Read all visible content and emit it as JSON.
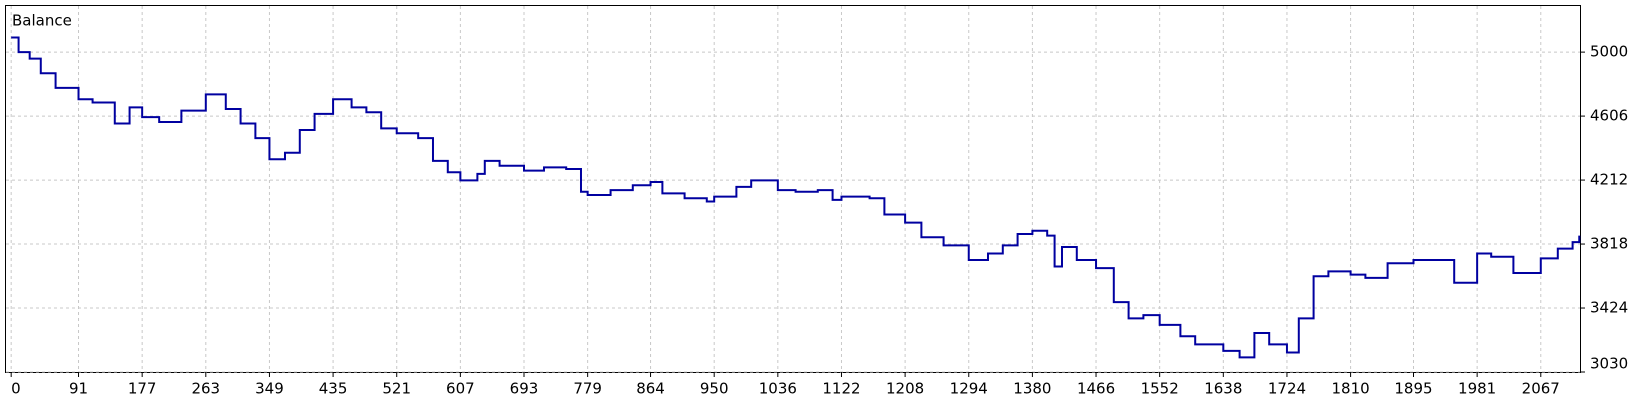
{
  "chart_data": {
    "type": "line",
    "title": "Balance",
    "x": [
      0,
      10,
      25,
      40,
      60,
      91,
      110,
      140,
      160,
      177,
      200,
      230,
      263,
      290,
      310,
      330,
      349,
      370,
      390,
      410,
      435,
      460,
      480,
      500,
      521,
      550,
      570,
      590,
      607,
      630,
      640,
      660,
      693,
      720,
      750,
      770,
      779,
      810,
      840,
      864,
      880,
      910,
      940,
      950,
      980,
      1000,
      1036,
      1060,
      1090,
      1110,
      1122,
      1160,
      1180,
      1208,
      1230,
      1260,
      1294,
      1320,
      1340,
      1360,
      1380,
      1400,
      1410,
      1420,
      1440,
      1466,
      1490,
      1510,
      1530,
      1552,
      1580,
      1600,
      1638,
      1660,
      1680,
      1700,
      1724,
      1740,
      1760,
      1780,
      1810,
      1830,
      1860,
      1895,
      1920,
      1950,
      1981,
      2000,
      2030,
      2067,
      2090,
      2110,
      2119
    ],
    "series": [
      {
        "name": "Balance",
        "color": "#0000a0",
        "values": [
          5090,
          5000,
          4960,
          4870,
          4780,
          4710,
          4690,
          4560,
          4660,
          4600,
          4570,
          4640,
          4740,
          4650,
          4560,
          4470,
          4340,
          4380,
          4520,
          4620,
          4710,
          4660,
          4630,
          4530,
          4500,
          4470,
          4330,
          4260,
          4210,
          4250,
          4330,
          4300,
          4270,
          4290,
          4280,
          4140,
          4120,
          4150,
          4180,
          4200,
          4130,
          4100,
          4080,
          4110,
          4170,
          4210,
          4150,
          4140,
          4150,
          4090,
          4110,
          4100,
          4000,
          3950,
          3860,
          3810,
          3720,
          3760,
          3810,
          3880,
          3900,
          3870,
          3680,
          3800,
          3720,
          3670,
          3460,
          3360,
          3380,
          3320,
          3250,
          3200,
          3160,
          3120,
          3270,
          3200,
          3150,
          3360,
          3620,
          3650,
          3630,
          3610,
          3700,
          3720,
          3720,
          3580,
          3760,
          3740,
          3640,
          3730,
          3790,
          3830,
          3870
        ]
      }
    ],
    "xlim": [
      -7,
      2120
    ],
    "xticks": [
      0,
      91,
      177,
      263,
      349,
      435,
      521,
      607,
      693,
      779,
      864,
      950,
      1036,
      1122,
      1208,
      1294,
      1380,
      1466,
      1552,
      1638,
      1724,
      1810,
      1895,
      1981,
      2067
    ],
    "ylim": [
      3030,
      5284
    ],
    "yticks": [
      3030,
      3424,
      3818,
      4212,
      4606,
      5000
    ],
    "grid": true
  }
}
